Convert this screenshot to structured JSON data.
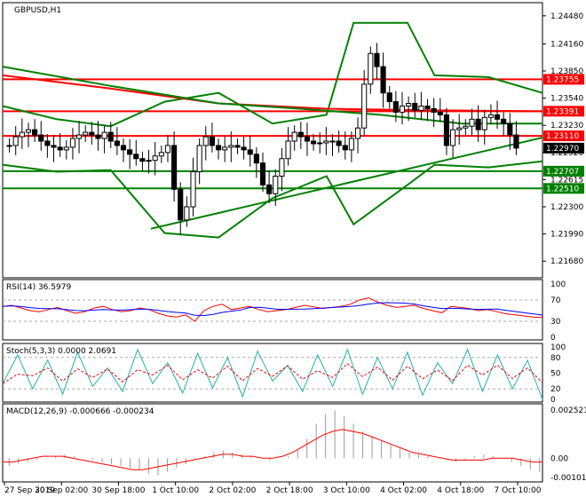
{
  "chart_data": {
    "type": "line",
    "instrument": "GBPUSD,H1",
    "time_labels": [
      "27 Sep 2019",
      "30 Sep 02:00",
      "30 Sep 18:00",
      "1 Oct 10:00",
      "2 Oct 02:00",
      "2 Oct 18:00",
      "3 Oct 10:00",
      "4 Oct 02:00",
      "4 Oct 18:00",
      "7 Oct 10:00"
    ],
    "price_panel": {
      "ylim": [
        1.215,
        1.2462
      ],
      "ticks": [
        1.2448,
        1.2416,
        1.2385,
        1.2354,
        1.2323,
        1.2292,
        1.2261,
        1.223,
        1.2199,
        1.2168
      ],
      "ticks_text": [
        "1.24480",
        "1.24160",
        "1.23850",
        "1.23540",
        "1.23230",
        "1.22920",
        "1.22615",
        "1.22300",
        "1.21990",
        "1.21680"
      ],
      "levels": [
        {
          "value": 1.23755,
          "label": "1.23755",
          "color": "#ff0000"
        },
        {
          "value": 1.23391,
          "label": "1.23391",
          "color": "#ff0000"
        },
        {
          "value": 1.2311,
          "label": "1.23110",
          "color": "#ff0000"
        },
        {
          "value": 1.22707,
          "label": "1.22707",
          "color": "#008000"
        },
        {
          "value": 1.2251,
          "label": "1.22510",
          "color": "#008000"
        }
      ],
      "current_price": {
        "value": 1.2297,
        "label": "1.22970"
      },
      "close": [
        1.23,
        1.231,
        1.2315,
        1.2318,
        1.2312,
        1.2305,
        1.23,
        1.2298,
        1.2295,
        1.2298,
        1.2308,
        1.2312,
        1.2315,
        1.2312,
        1.2308,
        1.2315,
        1.2305,
        1.23,
        1.2295,
        1.229,
        1.2285,
        1.2282,
        1.2283,
        1.2288,
        1.2292,
        1.23,
        1.225,
        1.2215,
        1.223,
        1.227,
        1.23,
        1.231,
        1.23,
        1.2295,
        1.2298,
        1.23,
        1.2298,
        1.2295,
        1.229,
        1.228,
        1.2255,
        1.2245,
        1.2265,
        1.2285,
        1.2305,
        1.2315,
        1.231,
        1.2305,
        1.2302,
        1.2303,
        1.2305,
        1.2305,
        1.23,
        1.2295,
        1.2308,
        1.232,
        1.237,
        1.2405,
        1.239,
        1.236,
        1.235,
        1.2338,
        1.2345,
        1.2348,
        1.234,
        1.2345,
        1.2342,
        1.2338,
        1.2335,
        1.23,
        1.2318,
        1.232,
        1.2322,
        1.233,
        1.2318,
        1.2332,
        1.2335,
        1.233,
        1.2325,
        1.2312,
        1.2297
      ],
      "trendline": {
        "from": [
          0.2747,
          1.2205
        ],
        "to": [
          1.0,
          1.2309
        ],
        "color": "#008000"
      },
      "sma_long": [
        {
          "x": 0.0,
          "y": 1.238
        },
        {
          "x": 0.2,
          "y": 1.2365
        },
        {
          "x": 0.4,
          "y": 1.2348
        },
        {
          "x": 0.6,
          "y": 1.2342
        },
        {
          "x": 0.8,
          "y": 1.234
        },
        {
          "x": 1.0,
          "y": 1.2339
        }
      ],
      "sma_mid": [
        {
          "x": 0.0,
          "y": 1.239
        },
        {
          "x": 0.2,
          "y": 1.2368
        },
        {
          "x": 0.4,
          "y": 1.2348
        },
        {
          "x": 0.55,
          "y": 1.2342
        },
        {
          "x": 0.7,
          "y": 1.2335
        },
        {
          "x": 0.85,
          "y": 1.2325
        },
        {
          "x": 1.0,
          "y": 1.2325
        }
      ],
      "bollinger_upper": [
        {
          "x": 0.0,
          "y": 1.2345
        },
        {
          "x": 0.1,
          "y": 1.233
        },
        {
          "x": 0.2,
          "y": 1.2322
        },
        {
          "x": 0.3,
          "y": 1.235
        },
        {
          "x": 0.4,
          "y": 1.236
        },
        {
          "x": 0.5,
          "y": 1.2325
        },
        {
          "x": 0.6,
          "y": 1.2335
        },
        {
          "x": 0.65,
          "y": 1.244
        },
        {
          "x": 0.75,
          "y": 1.244
        },
        {
          "x": 0.8,
          "y": 1.238
        },
        {
          "x": 0.9,
          "y": 1.2378
        },
        {
          "x": 1.0,
          "y": 1.236
        }
      ],
      "bollinger_lower": [
        {
          "x": 0.0,
          "y": 1.2278
        },
        {
          "x": 0.1,
          "y": 1.227
        },
        {
          "x": 0.2,
          "y": 1.2272
        },
        {
          "x": 0.3,
          "y": 1.22
        },
        {
          "x": 0.4,
          "y": 1.2195
        },
        {
          "x": 0.5,
          "y": 1.224
        },
        {
          "x": 0.6,
          "y": 1.2265
        },
        {
          "x": 0.65,
          "y": 1.221
        },
        {
          "x": 0.75,
          "y": 1.2255
        },
        {
          "x": 0.8,
          "y": 1.2278
        },
        {
          "x": 0.9,
          "y": 1.2275
        },
        {
          "x": 1.0,
          "y": 1.2282
        }
      ]
    },
    "rsi_panel": {
      "title": "RSI(14) 36.5979",
      "ylim": [
        0,
        100
      ],
      "ticks": [
        100,
        70,
        30,
        0
      ],
      "ticks_text": [
        "100",
        "70",
        "30",
        "0"
      ],
      "rsi": [
        58,
        60,
        55,
        50,
        48,
        52,
        56,
        50,
        45,
        48,
        55,
        58,
        52,
        48,
        50,
        55,
        52,
        45,
        40,
        38,
        42,
        30,
        50,
        58,
        62,
        52,
        55,
        58,
        52,
        48,
        50,
        52,
        56,
        60,
        57,
        54,
        56,
        58,
        62,
        70,
        74,
        66,
        60,
        56,
        58,
        60,
        54,
        50,
        46,
        58,
        56,
        54,
        50,
        52,
        48,
        44,
        42,
        40,
        38,
        37
      ]
    },
    "stoch_panel": {
      "title": "Stoch(5,3,3) 0.0000 2.0691",
      "ylim": [
        0,
        100
      ],
      "ticks": [
        100,
        80,
        50,
        20,
        0
      ],
      "ticks_text": [
        "100",
        "80",
        "50",
        "20",
        "0"
      ],
      "k_samples": [
        30,
        85,
        20,
        75,
        10,
        90,
        25,
        60,
        15,
        95,
        30,
        70,
        12,
        88,
        22,
        80,
        5,
        92,
        35,
        65,
        15,
        85,
        25,
        95,
        10,
        80,
        20,
        90,
        8,
        70,
        30,
        95,
        15,
        85,
        20,
        75,
        0
      ]
    },
    "macd_panel": {
      "title": "MACD(12,26,9) -0.000666 -0.000234",
      "ylim": [
        -0.0011,
        0.0027
      ],
      "ticks": [
        0.002521,
        0.0,
        -0.001016
      ],
      "ticks_text": [
        "0.002521",
        "0.00",
        "-0.001016"
      ],
      "histogram": [
        -0.0004,
        -0.0003,
        -0.0002,
        -0.0001,
        0.0,
        0.0001,
        0.0002,
        0.0001,
        0.0,
        -0.0001,
        -0.0002,
        -0.0003,
        -0.0004,
        -0.0005,
        -0.0006,
        -0.0008,
        -0.0009,
        -0.0007,
        -0.0005,
        -0.0003,
        -0.0001,
        0.0001,
        0.0003,
        0.0004,
        0.0003,
        0.0002,
        0.0001,
        0.0,
        -0.0001,
        0.0,
        0.0001,
        0.0004,
        0.001,
        0.0018,
        0.0023,
        0.0025,
        0.0022,
        0.0018,
        0.0014,
        0.0011,
        0.0009,
        0.0007,
        0.0005,
        0.0003,
        0.0002,
        0.0001,
        0.0,
        -0.0001,
        -0.0002,
        -0.0001,
        0.0001,
        0.0002,
        0.0001,
        0.0,
        -0.0002,
        -0.0004,
        -0.0006,
        -0.0007
      ],
      "signal": [
        -0.0002,
        -0.0002,
        -0.0001,
        0.0,
        0.0001,
        0.0001,
        0.0001,
        0.0,
        -0.0001,
        -0.0002,
        -0.0003,
        -0.0004,
        -0.0005,
        -0.0006,
        -0.0006,
        -0.0005,
        -0.0004,
        -0.0003,
        -0.0002,
        -0.0001,
        0.0,
        0.0001,
        0.0002,
        0.0002,
        0.0001,
        0.0001,
        0.0,
        0.0,
        0.0001,
        0.0003,
        0.0006,
        0.0009,
        0.0012,
        0.0014,
        0.0015,
        0.0014,
        0.0013,
        0.0011,
        0.0009,
        0.0007,
        0.0005,
        0.0003,
        0.0002,
        0.0001,
        0.0,
        -0.0001,
        -0.0001,
        -0.0001,
        -0.0001,
        0.0,
        0.0,
        0.0,
        -0.0001,
        -0.0002,
        -0.0002
      ]
    }
  }
}
